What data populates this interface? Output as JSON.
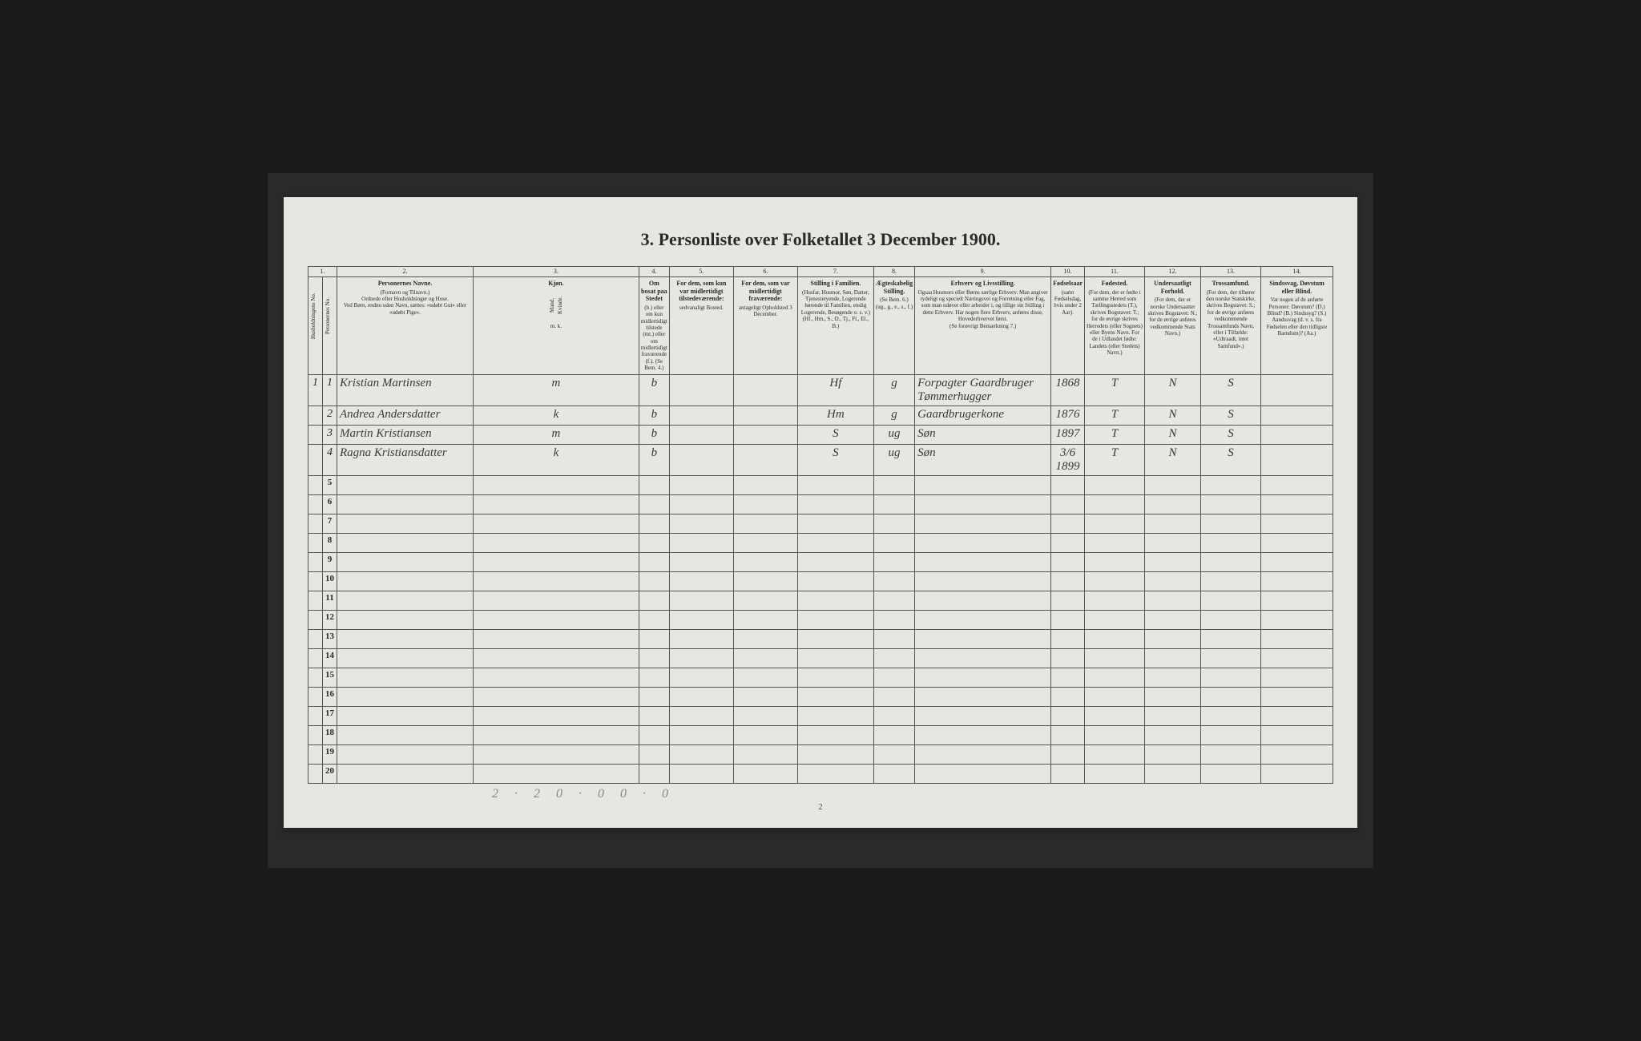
{
  "title": "3. Personliste over Folketallet 3 December 1900.",
  "page_number": "2",
  "bottom_annotation": "2 · 2   0 · 0   0 · 0",
  "columns": {
    "c1": {
      "num": "1.",
      "label": "Husholdningens No."
    },
    "c1b": {
      "label": "Personernes No."
    },
    "c2": {
      "num": "2.",
      "main": "Personernes Navne.",
      "sub1": "(Fornavn og Tilnavn.)",
      "sub2": "Ordnede efter Husholdninger og Huse.",
      "sub3": "Ved Børn, endnu uden Navn, sættes: «udøbt Gut» eller «udøbt Pige»."
    },
    "c3": {
      "num": "3.",
      "main": "Kjøn.",
      "sub_m": "Mand.",
      "sub_k": "Kvinde.",
      "mk": "m.  k."
    },
    "c4": {
      "num": "4.",
      "main": "Om bosat paa Stedet",
      "sub": "(b.) eller om kun midlertidigt tilstede (mt.) eller om midlertidigt fraværende (f.). (Se Bem. 4.)"
    },
    "c5": {
      "num": "5.",
      "main": "For dem, som kun var midlertidigt tilstedeværende:",
      "sub": "sedvanaligt Bosted."
    },
    "c6": {
      "num": "6.",
      "main": "For dem, som var midlertidigt fraværende:",
      "sub": "antageligt Opholdsted 3 December."
    },
    "c7": {
      "num": "7.",
      "main": "Stilling i Familien.",
      "sub": "(Husfar, Husmor, Søn, Datter, Tjenestetyende, Logerende hørende til Familien, enslig Logerende, Besøgende o. s. v.)",
      "sub2": "(Hf., Hm., S., D., Tj., Fl., El., B.)"
    },
    "c8": {
      "num": "8.",
      "main": "Ægteskabelig Stilling.",
      "sub": "(Se Bem. 6.)",
      "sub2": "(ug., g., e., s., f.)"
    },
    "c9": {
      "num": "9.",
      "main": "Erhverv og Livsstilling.",
      "sub": "Ogsaa Husmors eller Børns særlige Erhverv. Man angiver tydeligt og specielt Næringsvei og Forretning eller Fag, som man udøver eller arbeider i, og tillige sin Stilling i dette Erhverv. Har nogen flere Erhverv, anføres disse, Hovederhvervet først.",
      "sub2": "(Se forøvrigt Bemærkning 7.)"
    },
    "c10": {
      "num": "10.",
      "main": "Fødselsaar",
      "sub": "(samt Fødselsdag, hvis under 2 Aar)."
    },
    "c11": {
      "num": "11.",
      "main": "Fødested.",
      "sub": "(For dem, der er fødte i samme Herred som Tællingsstedets (T.), skrives Bogstavet: T.; for de øvrige skrives Herredets (eller Sognets) eller Byens Navn. For de i Udlandet fødte: Landets (eller Stedets) Navn.)"
    },
    "c12": {
      "num": "12.",
      "main": "Undersaatligt Forhold.",
      "sub": "(For dem, der er norske Undersaatter skrives Bogstavet: N.; for de øvrige anføres vedkommende Stats Navn.)"
    },
    "c13": {
      "num": "13.",
      "main": "Trossamfund.",
      "sub": "(For dem, der tilhører den norske Statskirke, skrives Bogstavet: S.; for de øvrige anføres vedkommende Trossamfunds Navn, eller i Tilfælde: «Udtraadt, intet Samfund».)"
    },
    "c14": {
      "num": "14.",
      "main": "Sindssvag, Døvstum eller Blind.",
      "sub": "Var nogen af de anførte Personer: Døvstum? (D.) Blind? (B.) Sindssyg? (S.) Aandssvag (d. v. s. fra Fødselen eller den tidligste Barndom)? (Aa.)"
    }
  },
  "rows": [
    {
      "hnum": "1",
      "pnum": "1",
      "name": "Kristian Martinsen",
      "sex": "m",
      "res": "b",
      "c5": "",
      "c6": "",
      "c7": "Hf",
      "c8": "g",
      "c9": "Forpagter Gaardbruger Tømmerhugger",
      "c10": "1868",
      "c11": "T",
      "c12": "N",
      "c13": "S",
      "c14": ""
    },
    {
      "hnum": "",
      "pnum": "2",
      "name": "Andrea Andersdatter",
      "sex": "k",
      "res": "b",
      "c5": "",
      "c6": "",
      "c7": "Hm",
      "c8": "g",
      "c9": "Gaardbrugerkone",
      "c10": "1876",
      "c11": "T",
      "c12": "N",
      "c13": "S",
      "c14": ""
    },
    {
      "hnum": "",
      "pnum": "3",
      "name": "Martin Kristiansen",
      "sex": "m",
      "res": "b",
      "c5": "",
      "c6": "",
      "c7": "S",
      "c8": "ug",
      "c9": "Søn",
      "c10": "1897",
      "c11": "T",
      "c12": "N",
      "c13": "S",
      "c14": ""
    },
    {
      "hnum": "",
      "pnum": "4",
      "name": "Ragna Kristiansdatter",
      "sex": "k",
      "res": "b",
      "c5": "",
      "c6": "",
      "c7": "S",
      "c8": "ug",
      "c9": "Søn",
      "c10": "3/6 1899",
      "c11": "T",
      "c12": "N",
      "c13": "S",
      "c14": ""
    }
  ],
  "empty_row_nums": [
    "5",
    "6",
    "7",
    "8",
    "9",
    "10",
    "11",
    "12",
    "13",
    "14",
    "15",
    "16",
    "17",
    "18",
    "19",
    "20"
  ],
  "colors": {
    "background": "#1a1a1a",
    "frame": "#2a2a2a",
    "paper": "#e8e6e0",
    "ink": "#2a2a2a",
    "handwriting": "#3a3a3a",
    "border": "#555"
  }
}
